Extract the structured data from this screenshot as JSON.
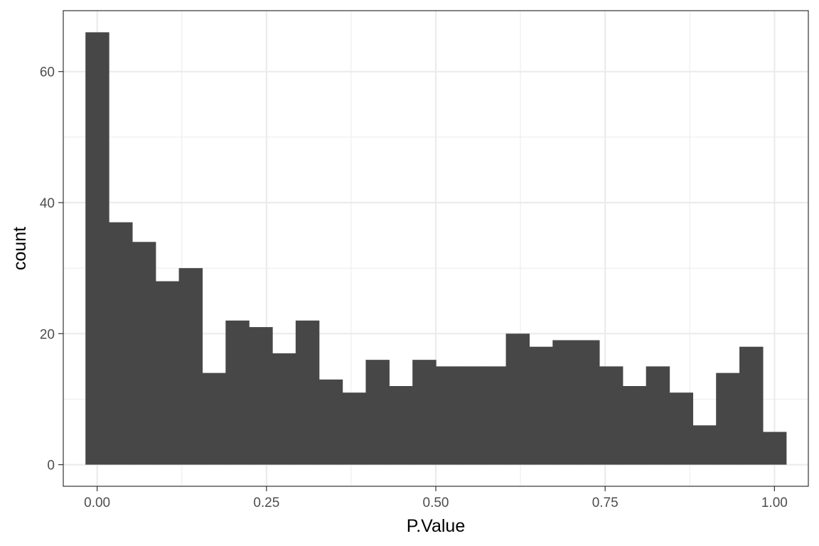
{
  "chart_data": {
    "type": "bar",
    "subtype": "histogram",
    "xlabel": "P.Value",
    "ylabel": "count",
    "xlim": [
      -0.05,
      1.05
    ],
    "ylim": [
      -3.3,
      69.3
    ],
    "x_ticks": [
      0.0,
      0.25,
      0.5,
      0.75,
      1.0
    ],
    "x_tick_labels": [
      "0.00",
      "0.25",
      "0.50",
      "0.75",
      "1.00"
    ],
    "y_ticks": [
      0,
      20,
      40,
      60
    ],
    "y_tick_labels": [
      "0",
      "20",
      "40",
      "60"
    ],
    "bin_width": 0.0345,
    "bin_centers": [
      0.0,
      0.0345,
      0.069,
      0.1034,
      0.1379,
      0.1724,
      0.2069,
      0.2414,
      0.2759,
      0.3103,
      0.3448,
      0.3793,
      0.4138,
      0.4483,
      0.4828,
      0.5172,
      0.5517,
      0.5862,
      0.6207,
      0.6552,
      0.6897,
      0.7241,
      0.7586,
      0.7931,
      0.8276,
      0.8621,
      0.8966,
      0.931,
      0.9655,
      1.0
    ],
    "values": [
      66,
      37,
      34,
      28,
      30,
      14,
      22,
      21,
      17,
      22,
      13,
      11,
      16,
      12,
      16,
      15,
      15,
      15,
      20,
      18,
      19,
      19,
      15,
      12,
      15,
      11,
      6,
      14,
      18,
      5
    ],
    "bar_color": "#474747",
    "grid": true,
    "theme": "bw",
    "grid_color": "#ebebeb",
    "panel_border_color": "#333333"
  }
}
